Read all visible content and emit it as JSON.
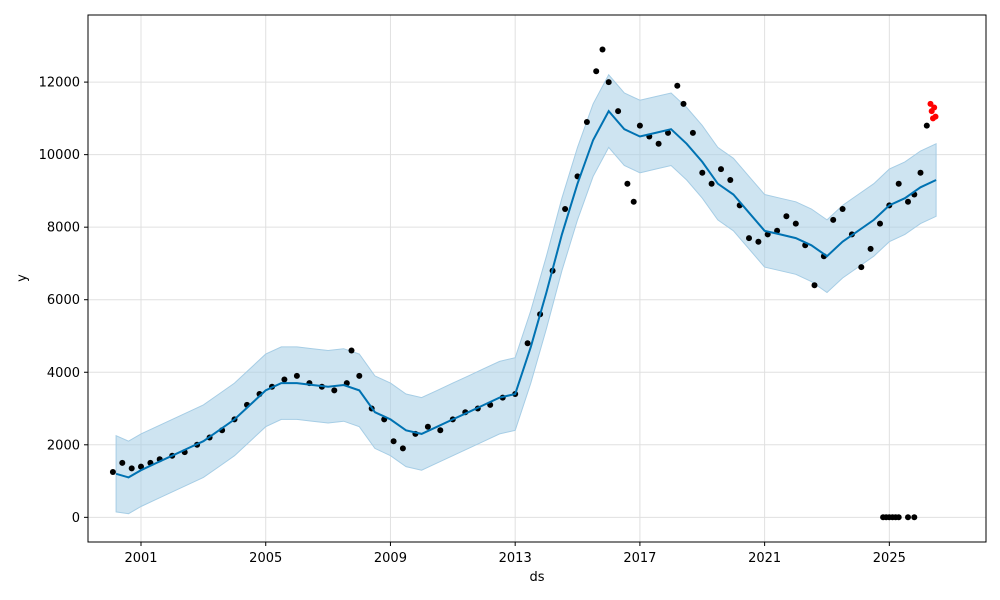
{
  "chart_data": {
    "type": "line",
    "title": "",
    "xlabel": "ds",
    "ylabel": "y",
    "x_ticks": [
      "2001",
      "2005",
      "2009",
      "2013",
      "2017",
      "2021",
      "2025"
    ],
    "y_ticks": [
      "0",
      "2000",
      "4000",
      "6000",
      "8000",
      "10000",
      "12000"
    ],
    "xlim": [
      1999.3,
      2028.1
    ],
    "ylim": [
      -680,
      13850
    ],
    "grid": true,
    "legend": "none",
    "colors": {
      "forecast": "#0072b2",
      "interval": "#a6cde5",
      "actual": "#000000",
      "highlight": "#ff0000"
    },
    "series": [
      {
        "role": "forecast",
        "x": [
          2000.2,
          2000.6,
          2001.0,
          2001.5,
          2002.0,
          2002.5,
          2003.0,
          2003.5,
          2004.0,
          2004.5,
          2005.0,
          2005.5,
          2006.0,
          2006.5,
          2007.0,
          2007.5,
          2008.0,
          2008.5,
          2009.0,
          2009.5,
          2010.0,
          2010.5,
          2011.0,
          2011.5,
          2012.0,
          2012.5,
          2013.0,
          2013.5,
          2014.0,
          2014.5,
          2015.0,
          2015.5,
          2016.0,
          2016.5,
          2017.0,
          2017.5,
          2018.0,
          2018.5,
          2019.0,
          2019.5,
          2020.0,
          2020.5,
          2021.0,
          2021.5,
          2022.0,
          2022.5,
          2023.0,
          2023.5,
          2024.0,
          2024.5,
          2025.0,
          2025.5,
          2026.0,
          2026.5
        ],
        "y": [
          1200,
          1100,
          1300,
          1500,
          1700,
          1900,
          2100,
          2400,
          2700,
          3100,
          3500,
          3700,
          3700,
          3650,
          3600,
          3650,
          3500,
          2900,
          2700,
          2400,
          2300,
          2500,
          2700,
          2900,
          3100,
          3300,
          3400,
          4700,
          6200,
          7800,
          9200,
          10400,
          11200,
          10700,
          10500,
          10600,
          10700,
          10300,
          9800,
          9200,
          8900,
          8400,
          7900,
          7800,
          7700,
          7500,
          7200,
          7600,
          7900,
          8200,
          8600,
          8800,
          9100,
          9300
        ]
      },
      {
        "role": "interval",
        "x": [
          2000.2,
          2000.6,
          2001.0,
          2001.5,
          2002.0,
          2002.5,
          2003.0,
          2003.5,
          2004.0,
          2004.5,
          2005.0,
          2005.5,
          2006.0,
          2006.5,
          2007.0,
          2007.5,
          2008.0,
          2008.5,
          2009.0,
          2009.5,
          2010.0,
          2010.5,
          2011.0,
          2011.5,
          2012.0,
          2012.5,
          2013.0,
          2013.5,
          2014.0,
          2014.5,
          2015.0,
          2015.5,
          2016.0,
          2016.5,
          2017.0,
          2017.5,
          2018.0,
          2018.5,
          2019.0,
          2019.5,
          2020.0,
          2020.5,
          2021.0,
          2021.5,
          2022.0,
          2022.5,
          2023.0,
          2023.5,
          2024.0,
          2024.5,
          2025.0,
          2025.5,
          2026.0,
          2026.5
        ],
        "lower": [
          150,
          100,
          300,
          500,
          700,
          900,
          1100,
          1400,
          1700,
          2100,
          2500,
          2700,
          2700,
          2650,
          2600,
          2650,
          2500,
          1900,
          1700,
          1400,
          1300,
          1500,
          1700,
          1900,
          2100,
          2300,
          2400,
          3700,
          5200,
          6800,
          8200,
          9400,
          10200,
          9700,
          9500,
          9600,
          9700,
          9300,
          8800,
          8200,
          7900,
          7400,
          6900,
          6800,
          6700,
          6500,
          6200,
          6600,
          6900,
          7200,
          7600,
          7800,
          8100,
          8300
        ],
        "upper": [
          2250,
          2100,
          2300,
          2500,
          2700,
          2900,
          3100,
          3400,
          3700,
          4100,
          4500,
          4700,
          4700,
          4650,
          4600,
          4650,
          4500,
          3900,
          3700,
          3400,
          3300,
          3500,
          3700,
          3900,
          4100,
          4300,
          4400,
          5700,
          7200,
          8800,
          10200,
          11400,
          12200,
          11700,
          11500,
          11600,
          11700,
          11300,
          10800,
          10200,
          9900,
          9400,
          8900,
          8800,
          8700,
          8500,
          8200,
          8600,
          8900,
          9200,
          9600,
          9800,
          10100,
          10300
        ]
      },
      {
        "role": "actual",
        "x": [
          2000.1,
          2000.4,
          2000.7,
          2001.0,
          2001.3,
          2001.6,
          2002.0,
          2002.4,
          2002.8,
          2003.2,
          2003.6,
          2004.0,
          2004.4,
          2004.8,
          2005.2,
          2005.6,
          2006.0,
          2006.4,
          2006.8,
          2007.2,
          2007.6,
          2007.75,
          2008.0,
          2008.4,
          2008.8,
          2009.1,
          2009.4,
          2009.8,
          2010.2,
          2010.6,
          2011.0,
          2011.4,
          2011.8,
          2012.2,
          2012.6,
          2013.0,
          2013.4,
          2013.8,
          2014.2,
          2014.6,
          2015.0,
          2015.3,
          2015.6,
          2015.8,
          2016.0,
          2016.3,
          2016.6,
          2016.8,
          2017.0,
          2017.3,
          2017.6,
          2017.9,
          2018.2,
          2018.4,
          2018.7,
          2019.0,
          2019.3,
          2019.6,
          2019.9,
          2020.2,
          2020.5,
          2020.8,
          2021.1,
          2021.4,
          2021.7,
          2022.0,
          2022.3,
          2022.6,
          2022.9,
          2023.2,
          2023.5,
          2023.8,
          2024.1,
          2024.4,
          2024.7,
          2025.0,
          2025.3,
          2025.6,
          2025.8,
          2026.0,
          2026.2
        ],
        "y": [
          1250,
          1500,
          1350,
          1400,
          1500,
          1600,
          1700,
          1800,
          2000,
          2200,
          2400,
          2700,
          3100,
          3400,
          3600,
          3800,
          3900,
          3700,
          3600,
          3500,
          3700,
          4600,
          3900,
          3000,
          2700,
          2100,
          1900,
          2300,
          2500,
          2400,
          2700,
          2900,
          3000,
          3100,
          3300,
          3400,
          4800,
          5600,
          6800,
          8500,
          9400,
          10900,
          12300,
          12900,
          12000,
          11200,
          9200,
          8700,
          10800,
          10500,
          10300,
          10600,
          11900,
          11400,
          10600,
          9500,
          9200,
          9600,
          9300,
          8600,
          7700,
          7600,
          7800,
          7900,
          8300,
          8100,
          7500,
          6400,
          7200,
          8200,
          8500,
          7800,
          6900,
          7400,
          8100,
          8600,
          9200,
          8700,
          8900,
          9500,
          10800
        ]
      },
      {
        "role": "highlight",
        "x": [
          2026.32,
          2026.36,
          2026.4,
          2026.44,
          2026.48
        ],
        "y": [
          11400,
          11200,
          11000,
          11300,
          11050
        ]
      },
      {
        "role": "outliers",
        "x": [
          2024.8,
          2024.9,
          2025.0,
          2025.1,
          2025.2,
          2025.3,
          2025.6,
          2025.8
        ],
        "y": [
          0,
          0,
          0,
          0,
          0,
          0,
          0,
          0
        ]
      }
    ]
  }
}
